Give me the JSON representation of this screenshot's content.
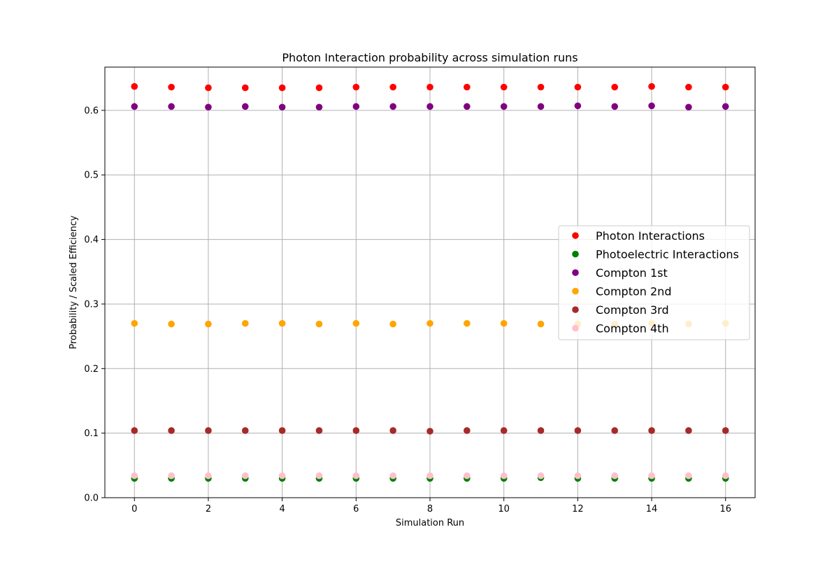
{
  "chart_data": {
    "type": "scatter",
    "title": "Photon Interaction probability across simulation runs",
    "xlabel": "Simulation Run",
    "ylabel": "Probability / Scaled Efficiency",
    "xlim": [
      -0.8,
      16.8
    ],
    "ylim": [
      0.0,
      0.667
    ],
    "xticks": [
      0,
      2,
      4,
      6,
      8,
      10,
      12,
      14,
      16
    ],
    "xtick_labels": [
      "0",
      "2",
      "4",
      "6",
      "8",
      "10",
      "12",
      "14",
      "16"
    ],
    "yticks": [
      0.0,
      0.1,
      0.2,
      0.3,
      0.4,
      0.5,
      0.6
    ],
    "ytick_labels": [
      "0.0",
      "0.1",
      "0.2",
      "0.3",
      "0.4",
      "0.5",
      "0.6"
    ],
    "grid": true,
    "legend_position": "center-right",
    "x": [
      0,
      1,
      2,
      3,
      4,
      5,
      6,
      7,
      8,
      9,
      10,
      11,
      12,
      13,
      14,
      15,
      16
    ],
    "series": [
      {
        "name": "Photon Interactions",
        "color": "#ff0000",
        "values": [
          0.637,
          0.636,
          0.635,
          0.635,
          0.635,
          0.635,
          0.636,
          0.636,
          0.636,
          0.636,
          0.636,
          0.636,
          0.636,
          0.636,
          0.637,
          0.636,
          0.636
        ]
      },
      {
        "name": "Photoelectric Interactions",
        "color": "#008000",
        "values": [
          0.03,
          0.03,
          0.03,
          0.03,
          0.03,
          0.03,
          0.03,
          0.03,
          0.03,
          0.03,
          0.03,
          0.031,
          0.03,
          0.03,
          0.03,
          0.03,
          0.03
        ]
      },
      {
        "name": "Compton 1st",
        "color": "#800080",
        "values": [
          0.606,
          0.606,
          0.605,
          0.606,
          0.605,
          0.605,
          0.606,
          0.606,
          0.606,
          0.606,
          0.606,
          0.606,
          0.607,
          0.606,
          0.607,
          0.605,
          0.606
        ]
      },
      {
        "name": "Compton 2nd",
        "color": "#ffa500",
        "values": [
          0.27,
          0.269,
          0.269,
          0.27,
          0.27,
          0.269,
          0.27,
          0.269,
          0.27,
          0.27,
          0.27,
          0.269,
          0.269,
          0.269,
          0.27,
          0.269,
          0.27
        ]
      },
      {
        "name": "Compton 3rd",
        "color": "#a52a2a",
        "values": [
          0.104,
          0.104,
          0.104,
          0.104,
          0.104,
          0.104,
          0.104,
          0.104,
          0.103,
          0.104,
          0.104,
          0.104,
          0.104,
          0.104,
          0.104,
          0.104,
          0.104
        ]
      },
      {
        "name": "Compton 4th",
        "color": "#ffc0cb",
        "values": [
          0.034,
          0.034,
          0.034,
          0.034,
          0.034,
          0.034,
          0.034,
          0.034,
          0.034,
          0.034,
          0.034,
          0.034,
          0.034,
          0.034,
          0.034,
          0.034,
          0.034
        ]
      }
    ]
  }
}
